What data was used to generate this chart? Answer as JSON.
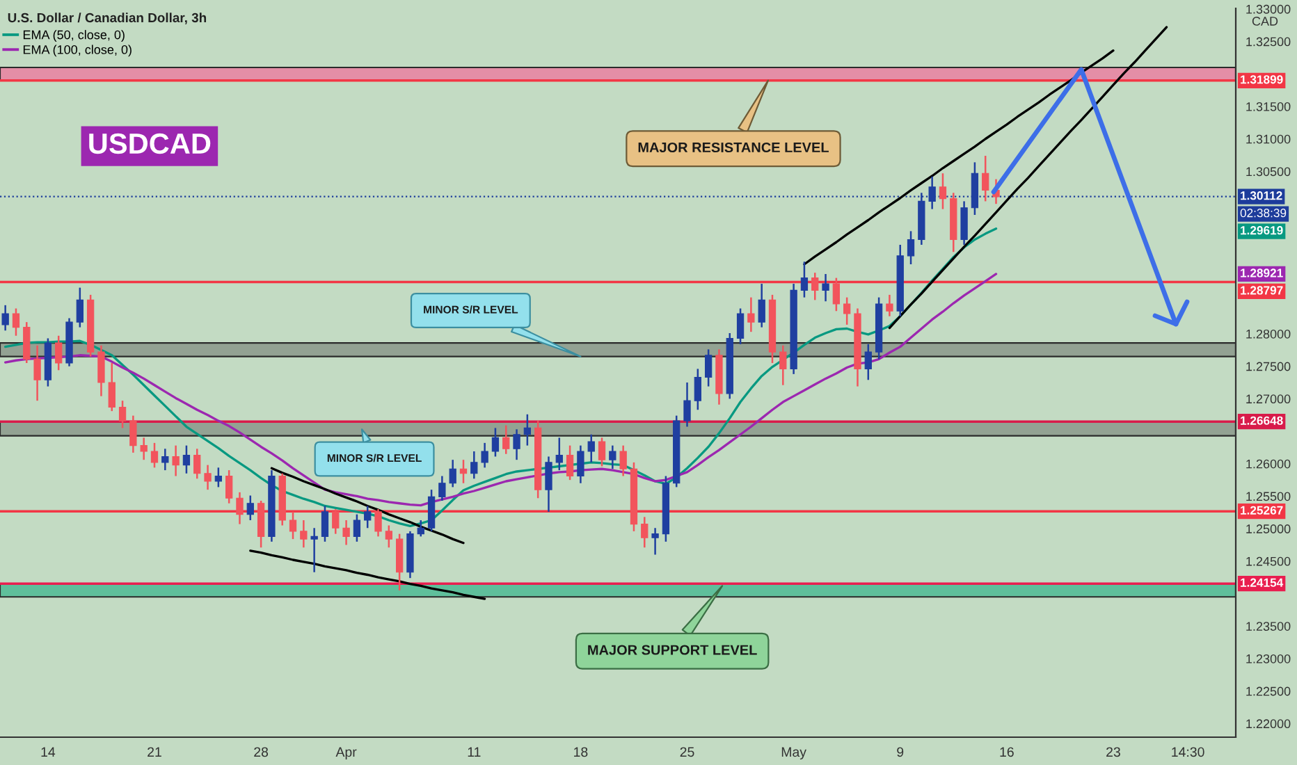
{
  "chart_data": {
    "type": "candlestick",
    "title": "U.S. Dollar / Canadian Dollar, 3h",
    "ylabel": "CAD",
    "legend": "top left",
    "ylim": [
      1.2179,
      1.3301
    ],
    "yticks": [
      {
        "value": 1.22,
        "label": "1.22000"
      },
      {
        "value": 1.225,
        "label": "1.22500"
      },
      {
        "value": 1.23,
        "label": "1.23000"
      },
      {
        "value": 1.235,
        "label": "1.23500"
      },
      {
        "value": 1.245,
        "label": "1.24500"
      },
      {
        "value": 1.25,
        "label": "1.25000"
      },
      {
        "value": 1.255,
        "label": "1.25500"
      },
      {
        "value": 1.26,
        "label": "1.26000"
      },
      {
        "value": 1.27,
        "label": "1.27000"
      },
      {
        "value": 1.275,
        "label": "1.27500"
      },
      {
        "value": 1.28,
        "label": "1.28000"
      },
      {
        "value": 1.305,
        "label": "1.30500"
      },
      {
        "value": 1.31,
        "label": "1.31000"
      },
      {
        "value": 1.315,
        "label": "1.31500"
      },
      {
        "value": 1.325,
        "label": "1.32500"
      },
      {
        "value": 1.33,
        "label": "1.33000"
      }
    ],
    "categories": [
      null,
      null,
      null,
      null,
      "14",
      null,
      null,
      null,
      null,
      null,
      null,
      null,
      null,
      null,
      "21",
      null,
      null,
      null,
      null,
      null,
      null,
      null,
      null,
      null,
      "28",
      null,
      null,
      null,
      null,
      null,
      null,
      null,
      "Apr",
      null,
      null,
      null,
      null,
      null,
      null,
      null,
      null,
      null,
      null,
      null,
      "11",
      null,
      null,
      null,
      null,
      null,
      null,
      null,
      null,
      null,
      "18",
      null,
      null,
      null,
      null,
      null,
      null,
      null,
      null,
      null,
      "25",
      null,
      null,
      null,
      null,
      null,
      null,
      null,
      null,
      null,
      "May",
      null,
      null,
      null,
      null,
      null,
      null,
      null,
      null,
      null,
      "9",
      null,
      null,
      null,
      null,
      null,
      null,
      null,
      null,
      null,
      "16",
      null,
      null,
      null,
      null,
      null,
      null,
      null,
      null,
      null,
      "23",
      null,
      null,
      null,
      null,
      null,
      null,
      "14:30",
      null,
      null,
      null,
      null
    ],
    "ohlc": [
      [
        1.2814,
        1.2844,
        1.2805,
        1.2831
      ],
      [
        1.2831,
        1.2839,
        1.2797,
        1.281
      ],
      [
        1.281,
        1.2818,
        1.2755,
        1.2761
      ],
      [
        1.2761,
        1.2782,
        1.2697,
        1.2729
      ],
      [
        1.2729,
        1.2793,
        1.2719,
        1.2786
      ],
      [
        1.2786,
        1.2797,
        1.2744,
        1.2755
      ],
      [
        1.2755,
        1.2824,
        1.275,
        1.2818
      ],
      [
        1.2818,
        1.2871,
        1.281,
        1.2852
      ],
      [
        1.2852,
        1.286,
        1.2765,
        1.2772
      ],
      [
        1.2772,
        1.2782,
        1.2704,
        1.2725
      ],
      [
        1.2725,
        1.2755,
        1.2681,
        1.2687
      ],
      [
        1.2687,
        1.2697,
        1.2655,
        1.2666
      ],
      [
        1.2666,
        1.2674,
        1.2617,
        1.2628
      ],
      [
        1.2628,
        1.264,
        1.2606,
        1.2619
      ],
      [
        1.2619,
        1.2632,
        1.2594,
        1.2602
      ],
      [
        1.2602,
        1.2623,
        1.259,
        1.2611
      ],
      [
        1.2611,
        1.2628,
        1.2581,
        1.2598
      ],
      [
        1.2598,
        1.2628,
        1.2585,
        1.2613
      ],
      [
        1.2613,
        1.2623,
        1.2577,
        1.2585
      ],
      [
        1.2585,
        1.2598,
        1.256,
        1.2573
      ],
      [
        1.2573,
        1.2594,
        1.2564,
        1.2581
      ],
      [
        1.2581,
        1.259,
        1.2539,
        1.2547
      ],
      [
        1.2547,
        1.2556,
        1.2507,
        1.2522
      ],
      [
        1.2522,
        1.2551,
        1.2513,
        1.2539
      ],
      [
        1.2539,
        1.2543,
        1.2471,
        1.2488
      ],
      [
        1.2488,
        1.259,
        1.248,
        1.2581
      ],
      [
        1.2581,
        1.2585,
        1.2505,
        1.2513
      ],
      [
        1.2513,
        1.2526,
        1.2484,
        1.2496
      ],
      [
        1.2496,
        1.2513,
        1.2471,
        1.2484
      ],
      [
        1.2484,
        1.2501,
        1.2433,
        1.2488
      ],
      [
        1.2488,
        1.2535,
        1.248,
        1.2526
      ],
      [
        1.2526,
        1.253,
        1.2492,
        1.2501
      ],
      [
        1.2501,
        1.2513,
        1.2475,
        1.2488
      ],
      [
        1.2488,
        1.2522,
        1.248,
        1.2513
      ],
      [
        1.2513,
        1.2535,
        1.2501,
        1.2526
      ],
      [
        1.2526,
        1.253,
        1.2488,
        1.2496
      ],
      [
        1.2496,
        1.2505,
        1.2471,
        1.2484
      ],
      [
        1.2484,
        1.2492,
        1.2405,
        1.2433
      ],
      [
        1.2433,
        1.2496,
        1.2424,
        1.2492
      ],
      [
        1.2492,
        1.2513,
        1.2488,
        1.2501
      ],
      [
        1.2501,
        1.256,
        1.2496,
        1.2549
      ],
      [
        1.2549,
        1.2581,
        1.2543,
        1.257
      ],
      [
        1.257,
        1.2606,
        1.2564,
        1.2592
      ],
      [
        1.2592,
        1.2606,
        1.257,
        1.2585
      ],
      [
        1.2585,
        1.2619,
        1.2577,
        1.2602
      ],
      [
        1.2602,
        1.2632,
        1.2594,
        1.2619
      ],
      [
        1.2619,
        1.2655,
        1.2611,
        1.264
      ],
      [
        1.264,
        1.2659,
        1.2615,
        1.2623
      ],
      [
        1.2623,
        1.2653,
        1.2606,
        1.2645
      ],
      [
        1.2645,
        1.2676,
        1.2628,
        1.2655
      ],
      [
        1.2655,
        1.2666,
        1.2547,
        1.256
      ],
      [
        1.256,
        1.2611,
        1.2526,
        1.2602
      ],
      [
        1.2602,
        1.264,
        1.259,
        1.2613
      ],
      [
        1.2613,
        1.2628,
        1.2575,
        1.2581
      ],
      [
        1.2581,
        1.2628,
        1.257,
        1.2619
      ],
      [
        1.2619,
        1.2645,
        1.2602,
        1.2634
      ],
      [
        1.2634,
        1.264,
        1.2596,
        1.2606
      ],
      [
        1.2606,
        1.2628,
        1.2592,
        1.2619
      ],
      [
        1.2619,
        1.2628,
        1.2581,
        1.2592
      ],
      [
        1.2592,
        1.2602,
        1.2496,
        1.2507
      ],
      [
        1.2507,
        1.2518,
        1.2471,
        1.2486
      ],
      [
        1.2486,
        1.2501,
        1.246,
        1.2492
      ],
      [
        1.2492,
        1.2581,
        1.248,
        1.257
      ],
      [
        1.257,
        1.2674,
        1.2564,
        1.2666
      ],
      [
        1.2666,
        1.2725,
        1.2657,
        1.2697
      ],
      [
        1.2697,
        1.2746,
        1.2683,
        1.2733
      ],
      [
        1.2733,
        1.2776,
        1.2719,
        1.2767
      ],
      [
        1.2767,
        1.2776,
        1.2691,
        1.2708
      ],
      [
        1.2708,
        1.2801,
        1.27,
        1.2793
      ],
      [
        1.2793,
        1.2839,
        1.2784,
        1.2831
      ],
      [
        1.2831,
        1.2856,
        1.2803,
        1.2818
      ],
      [
        1.2818,
        1.2877,
        1.281,
        1.2852
      ],
      [
        1.2852,
        1.286,
        1.2755,
        1.2772
      ],
      [
        1.2772,
        1.2782,
        1.2721,
        1.2746
      ],
      [
        1.2746,
        1.2877,
        1.2738,
        1.2867
      ],
      [
        1.2867,
        1.2911,
        1.2856,
        1.2886
      ],
      [
        1.2886,
        1.2894,
        1.2852,
        1.2867
      ],
      [
        1.2867,
        1.2892,
        1.285,
        1.2877
      ],
      [
        1.2877,
        1.2886,
        1.2835,
        1.2846
      ],
      [
        1.2846,
        1.2856,
        1.2814,
        1.2831
      ],
      [
        1.2831,
        1.2839,
        1.2719,
        1.2746
      ],
      [
        1.2746,
        1.2784,
        1.2729,
        1.2772
      ],
      [
        1.2772,
        1.2856,
        1.2761,
        1.2846
      ],
      [
        1.2846,
        1.286,
        1.2827,
        1.2835
      ],
      [
        1.2835,
        1.2937,
        1.2827,
        1.292
      ],
      [
        1.292,
        1.2958,
        1.2907,
        1.2945
      ],
      [
        1.2945,
        1.3017,
        1.2937,
        1.3004
      ],
      [
        1.3004,
        1.3042,
        1.2992,
        1.3026
      ],
      [
        1.3026,
        1.3047,
        1.2992,
        1.3008
      ],
      [
        1.3008,
        1.3017,
        1.2926,
        1.2945
      ],
      [
        1.2945,
        1.3004,
        1.2937,
        1.2994
      ],
      [
        1.2994,
        1.3064,
        1.2983,
        1.3047
      ],
      [
        1.3047,
        1.3074,
        1.3004,
        1.3021
      ],
      [
        1.3021,
        1.3038,
        1.3,
        1.3011
      ],
      null,
      null,
      null,
      null,
      null,
      null,
      null,
      null,
      null,
      null,
      null,
      null,
      null,
      null,
      null,
      null,
      null,
      null,
      null,
      null,
      null,
      null
    ],
    "colors": [
      "#1f3fa0",
      "#f2545c",
      "#f2545c",
      "#f2545c",
      "#1f3fa0",
      "#f2545c",
      "#1f3fa0",
      "#1f3fa0",
      "#f2545c",
      "#f2545c",
      "#f2545c",
      "#f2545c",
      "#f2545c",
      "#f2545c",
      "#f2545c",
      "#1f3fa0",
      "#f2545c",
      "#1f3fa0",
      "#f2545c",
      "#f2545c",
      "#1f3fa0",
      "#f2545c",
      "#f2545c",
      "#1f3fa0",
      "#f2545c",
      "#1f3fa0",
      "#f2545c",
      "#f2545c",
      "#f2545c",
      "#1f3fa0",
      "#1f3fa0",
      "#f2545c",
      "#f2545c",
      "#1f3fa0",
      "#1f3fa0",
      "#f2545c",
      "#f2545c",
      "#f2545c",
      "#1f3fa0",
      "#1f3fa0",
      "#1f3fa0",
      "#1f3fa0",
      "#1f3fa0",
      "#f2545c",
      "#1f3fa0",
      "#1f3fa0",
      "#1f3fa0",
      "#f2545c",
      "#1f3fa0",
      "#1f3fa0",
      "#f2545c",
      "#1f3fa0",
      "#1f3fa0",
      "#f2545c",
      "#1f3fa0",
      "#1f3fa0",
      "#f2545c",
      "#1f3fa0",
      "#f2545c",
      "#f2545c",
      "#f2545c",
      "#1f3fa0",
      "#1f3fa0",
      "#1f3fa0",
      "#1f3fa0",
      "#1f3fa0",
      "#1f3fa0",
      "#f2545c",
      "#1f3fa0",
      "#1f3fa0",
      "#f2545c",
      "#1f3fa0",
      "#f2545c",
      "#f2545c",
      "#1f3fa0",
      "#1f3fa0",
      "#f2545c",
      "#1f3fa0",
      "#f2545c",
      "#f2545c",
      "#f2545c",
      "#1f3fa0",
      "#1f3fa0",
      "#f2545c",
      "#1f3fa0",
      "#1f3fa0",
      "#1f3fa0",
      "#1f3fa0",
      "#f2545c",
      "#f2545c",
      "#1f3fa0",
      "#1f3fa0",
      "#f2545c",
      "#f2545c",
      null,
      null,
      null,
      null,
      null,
      null,
      null,
      null,
      null,
      null,
      null,
      null,
      null,
      null,
      null,
      null,
      null,
      null,
      null,
      null,
      null,
      null
    ],
    "series": [
      {
        "name": "EMA (50, close, 0)",
        "type": "line",
        "color": "#089981",
        "values": [
          1.278,
          1.2783,
          1.2786,
          1.2787,
          1.2787,
          1.2788,
          1.2788,
          1.2789,
          1.2783,
          1.2775,
          1.2767,
          1.2752,
          1.2737,
          1.2721,
          1.2705,
          1.2689,
          1.2673,
          1.2657,
          1.2646,
          1.2635,
          1.2624,
          1.2612,
          1.2601,
          1.259,
          1.2578,
          1.2567,
          1.2558,
          1.2552,
          1.2546,
          1.2541,
          1.2535,
          1.2532,
          1.2529,
          1.2526,
          1.2523,
          1.2519,
          1.2513,
          1.2508,
          1.2504,
          1.2508,
          1.2513,
          1.2528,
          1.2544,
          1.2559,
          1.2566,
          1.2572,
          1.2578,
          1.2584,
          1.2588,
          1.259,
          1.2592,
          1.2594,
          1.2596,
          1.2598,
          1.26,
          1.2602,
          1.2601,
          1.2599,
          1.2598,
          1.259,
          1.2582,
          1.2573,
          1.2569,
          1.2579,
          1.2593,
          1.2609,
          1.2626,
          1.2647,
          1.267,
          1.2695,
          1.2716,
          1.2735,
          1.2749,
          1.276,
          1.2771,
          1.2783,
          1.2794,
          1.2801,
          1.2807,
          1.2808,
          1.2803,
          1.2799,
          1.2805,
          1.2812,
          1.2827,
          1.2845,
          1.2863,
          1.2882,
          1.29,
          1.2918,
          1.2933,
          1.2945,
          1.2954,
          1.29619,
          null,
          null,
          null,
          null,
          null,
          null,
          null,
          null,
          null,
          null,
          null,
          null,
          null,
          null,
          null,
          null,
          null,
          null,
          null,
          null,
          null,
          null
        ]
      },
      {
        "name": "EMA (100, close, 0)",
        "type": "line",
        "color": "#9c27b0",
        "values": [
          1.2756,
          1.2759,
          1.2761,
          1.2762,
          1.2763,
          1.2764,
          1.2765,
          1.2767,
          1.2766,
          1.2765,
          1.2757,
          1.2748,
          1.274,
          1.2731,
          1.2721,
          1.2711,
          1.2701,
          1.2692,
          1.2683,
          1.2675,
          1.2666,
          1.2658,
          1.2648,
          1.2637,
          1.2626,
          1.2616,
          1.2605,
          1.2593,
          1.2582,
          1.2571,
          1.256,
          1.2556,
          1.2553,
          1.255,
          1.2546,
          1.2544,
          1.2541,
          1.2539,
          1.2537,
          1.2536,
          1.2541,
          1.2545,
          1.2549,
          1.2554,
          1.2558,
          1.2563,
          1.2568,
          1.2573,
          1.2576,
          1.2579,
          1.2582,
          1.2585,
          1.2587,
          1.2588,
          1.259,
          1.2591,
          1.2592,
          1.259,
          1.2587,
          1.2584,
          1.2578,
          1.2573,
          1.2575,
          1.2581,
          1.2587,
          1.2598,
          1.261,
          1.2621,
          1.2633,
          1.2645,
          1.2657,
          1.267,
          1.2683,
          1.2695,
          1.2704,
          1.2713,
          1.2722,
          1.2731,
          1.2739,
          1.2748,
          1.2754,
          1.2756,
          1.2761,
          1.2771,
          1.278,
          1.2794,
          1.2808,
          1.2822,
          1.2834,
          1.2847,
          1.2859,
          1.287,
          1.2881,
          1.28921,
          null,
          null,
          null,
          null,
          null,
          null,
          null,
          null,
          null,
          null,
          null,
          null,
          null,
          null,
          null,
          null,
          null,
          null,
          null,
          null,
          null,
          null
        ]
      },
      {
        "type": "line",
        "color": "#000000",
        "values": [
          null,
          null,
          null,
          null,
          null,
          null,
          null,
          null,
          null,
          null,
          null,
          null,
          null,
          null,
          null,
          null,
          null,
          null,
          null,
          null,
          null,
          null,
          null,
          null,
          null,
          1.2593,
          1.2586,
          1.258,
          1.2573,
          1.2567,
          1.2561,
          1.2554,
          1.2548,
          1.2542,
          1.2535,
          1.2529,
          1.2522,
          1.2516,
          1.251,
          1.2503,
          1.2497,
          1.2491,
          1.2484,
          1.2478,
          null,
          null,
          null,
          null,
          null,
          null,
          null,
          null,
          null,
          null,
          null,
          null,
          null,
          null,
          null,
          null,
          null,
          null,
          null,
          null,
          null,
          null,
          null,
          null,
          null,
          null,
          null,
          null,
          null,
          null,
          null,
          null,
          null,
          null,
          null,
          null,
          null,
          null,
          null,
          null,
          null,
          null,
          null,
          null,
          null,
          null,
          null,
          null,
          null,
          null,
          null,
          null,
          null,
          null,
          null,
          null,
          null,
          null,
          null,
          null,
          null,
          null,
          null,
          null,
          null,
          null,
          null,
          null,
          null,
          null,
          null,
          null
        ]
      },
      {
        "type": "line",
        "color": "#000000",
        "values": [
          null,
          null,
          null,
          null,
          null,
          null,
          null,
          null,
          null,
          null,
          null,
          null,
          null,
          null,
          null,
          null,
          null,
          null,
          null,
          null,
          null,
          null,
          null,
          1.2466,
          1.2463,
          1.2459,
          1.2456,
          1.2452,
          1.2449,
          1.2446,
          1.2442,
          1.2439,
          1.2436,
          1.2432,
          1.2429,
          1.2425,
          1.2422,
          1.2419,
          1.2415,
          1.2412,
          1.2408,
          1.2405,
          1.2402,
          1.2398,
          1.2395,
          1.2392,
          null,
          null,
          null,
          null,
          null,
          null,
          null,
          null,
          null,
          null,
          null,
          null,
          null,
          null,
          null,
          null,
          null,
          null,
          null,
          null,
          null,
          null,
          null,
          null,
          null,
          null,
          null,
          null,
          null,
          null,
          null,
          null,
          null,
          null,
          null,
          null,
          null,
          null,
          null,
          null,
          null,
          null,
          null,
          null,
          null,
          null,
          null,
          null,
          null,
          null,
          null,
          null,
          null,
          null,
          null,
          null,
          null,
          null,
          null,
          null,
          null,
          null,
          null,
          null,
          null,
          null,
          null,
          null,
          null,
          null
        ]
      },
      {
        "type": "line",
        "color": "#000000",
        "values": [
          null,
          null,
          null,
          null,
          null,
          null,
          null,
          null,
          null,
          null,
          null,
          null,
          null,
          null,
          null,
          null,
          null,
          null,
          null,
          null,
          null,
          null,
          null,
          null,
          null,
          null,
          null,
          null,
          null,
          null,
          null,
          null,
          null,
          null,
          null,
          null,
          null,
          null,
          null,
          null,
          null,
          null,
          null,
          null,
          null,
          null,
          null,
          null,
          null,
          null,
          null,
          null,
          null,
          null,
          null,
          null,
          null,
          null,
          null,
          null,
          null,
          null,
          null,
          null,
          null,
          null,
          null,
          null,
          null,
          null,
          null,
          null,
          null,
          null,
          null,
          1.2907,
          1.2919,
          1.293,
          1.2941,
          1.2953,
          1.2964,
          1.2975,
          1.2987,
          1.2998,
          1.3009,
          1.3021,
          1.3032,
          1.3043,
          1.3055,
          1.3066,
          1.3077,
          1.3088,
          1.31,
          1.3111,
          1.3122,
          1.3134,
          1.3145,
          1.3156,
          1.3168,
          1.3179,
          1.319,
          1.3202,
          1.3213,
          1.3224,
          1.3236,
          null,
          null,
          null,
          null,
          null,
          null,
          null,
          null,
          null,
          null,
          null
        ]
      },
      {
        "type": "line",
        "color": "#000000",
        "values": [
          null,
          null,
          null,
          null,
          null,
          null,
          null,
          null,
          null,
          null,
          null,
          null,
          null,
          null,
          null,
          null,
          null,
          null,
          null,
          null,
          null,
          null,
          null,
          null,
          null,
          null,
          null,
          null,
          null,
          null,
          null,
          null,
          null,
          null,
          null,
          null,
          null,
          null,
          null,
          null,
          null,
          null,
          null,
          null,
          null,
          null,
          null,
          null,
          null,
          null,
          null,
          null,
          null,
          null,
          null,
          null,
          null,
          null,
          null,
          null,
          null,
          null,
          null,
          null,
          null,
          null,
          null,
          null,
          null,
          null,
          null,
          null,
          null,
          null,
          null,
          null,
          null,
          null,
          null,
          null,
          null,
          null,
          null,
          1.2809,
          1.2827,
          1.2845,
          1.2862,
          1.288,
          1.2898,
          1.2916,
          1.2934,
          1.2951,
          1.2969,
          1.2987,
          1.3005,
          1.3023,
          1.304,
          1.3058,
          1.3076,
          1.3094,
          1.3112,
          1.3129,
          1.3147,
          1.3165,
          1.3183,
          1.3201,
          1.3218,
          1.3236,
          1.3254,
          1.3272,
          null,
          null,
          null,
          null,
          null,
          null
        ]
      }
    ],
    "bands": [
      {
        "axis": "y",
        "from": 1.31899,
        "to": 1.321,
        "color": "#e48ea6"
      },
      {
        "axis": "y",
        "from": 1.2765,
        "to": 1.2786,
        "color": "#93a293"
      },
      {
        "axis": "y",
        "from": 1.2643,
        "to": 1.26648,
        "color": "#93a293"
      },
      {
        "axis": "y",
        "from": 1.2395,
        "to": 1.24154,
        "color": "#5fbf9b"
      }
    ],
    "ref_lines": [
      {
        "axis": "y",
        "value": 1.31899,
        "label": "1.31899",
        "color": "#f23645"
      },
      {
        "axis": "y",
        "value": 1.30112,
        "label": "1.30112",
        "color": "#1d3c9b",
        "line_style": "dotted"
      },
      {
        "axis": "y",
        "value": 1.28797,
        "label": "1.28797",
        "color": "#f23645"
      },
      {
        "axis": "y",
        "value": 1.26648,
        "label": "1.26648",
        "color": "#d81b4a"
      },
      {
        "axis": "y",
        "value": 1.25267,
        "label": "1.25267",
        "color": "#f23645"
      },
      {
        "axis": "y",
        "value": 1.24154,
        "label": "1.24154",
        "color": "#e91e4f"
      }
    ],
    "annotations": [
      "USDCAD",
      "MAJOR RESISTANCE LEVEL",
      {
        "text": "MINOR S/R LEVEL",
        "x": "18",
        "y": 1.2765
      },
      {
        "text": "MINOR S/R LEVEL",
        "y": 1.2653
      },
      "MAJOR SUPPORT LEVEL",
      "02:38:39",
      "1.29619",
      "1.28921"
    ]
  }
}
